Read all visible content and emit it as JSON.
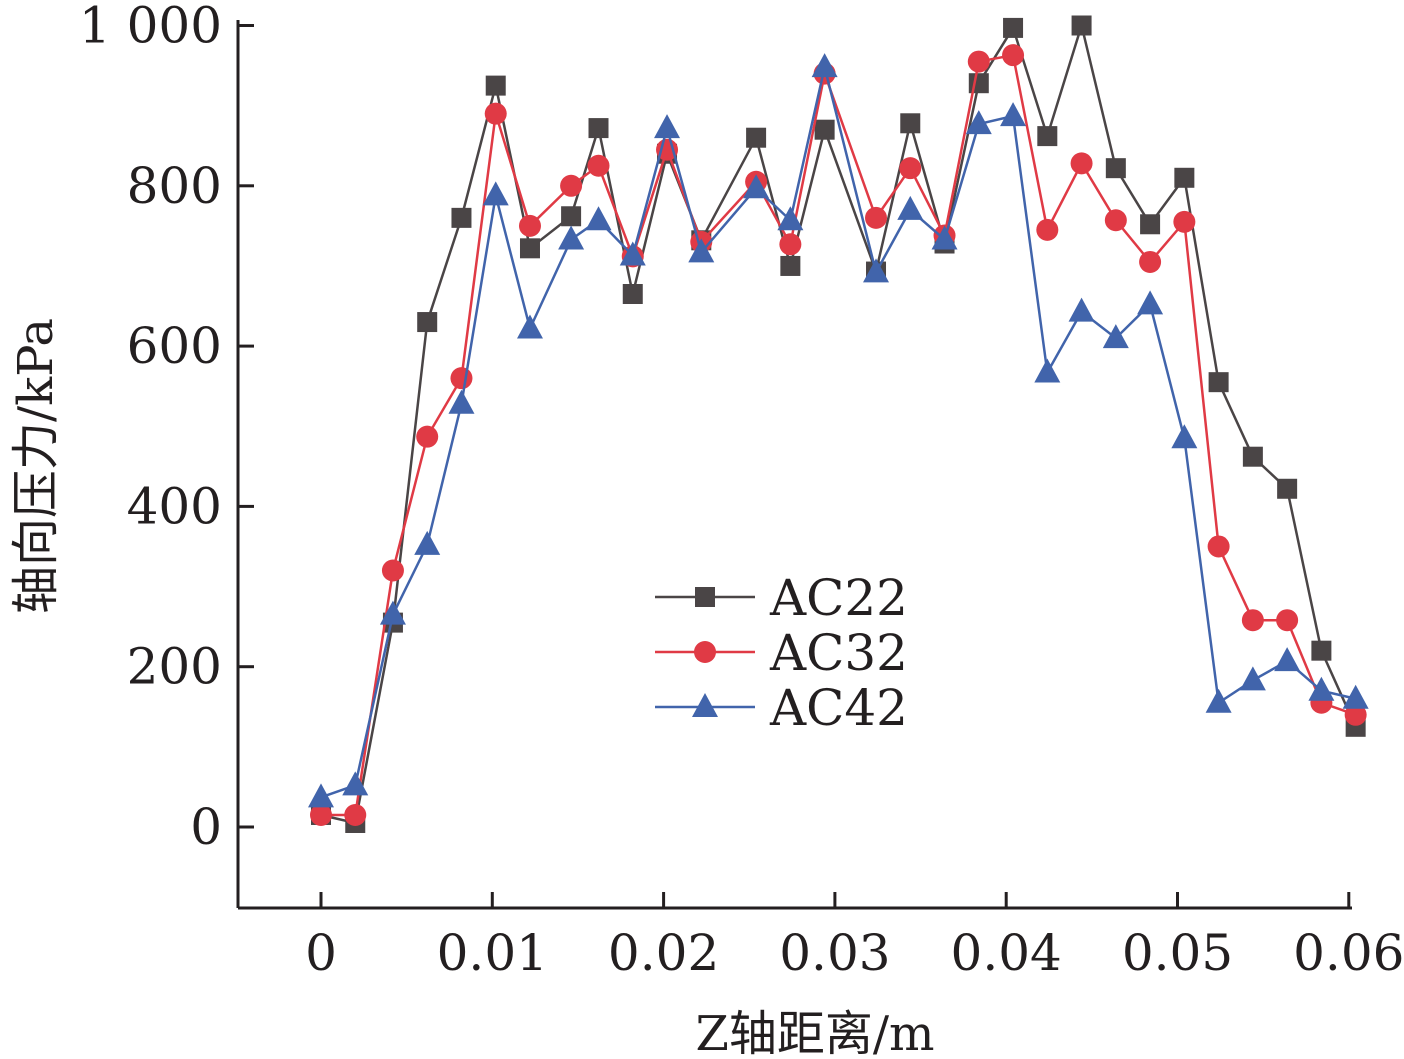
{
  "chart_data": {
    "type": "line",
    "xlabel": "Z轴距离/m",
    "ylabel": "轴向压力/kPa",
    "xlim": [
      -0.005,
      0.06
    ],
    "ylim": [
      -100,
      1000
    ],
    "xticks": [
      0,
      0.01,
      0.02,
      0.03,
      0.04,
      0.05,
      0.06
    ],
    "xtick_labels": [
      "0",
      "0.01",
      "0.02",
      "0.03",
      "0.04",
      "0.05",
      "0.06"
    ],
    "yticks": [
      0,
      200,
      400,
      600,
      800,
      1000
    ],
    "ytick_labels": [
      "0",
      "200",
      "400",
      "600",
      "800",
      "1 000"
    ],
    "legend_position": "center",
    "grid": false,
    "series": [
      {
        "name": "AC22",
        "color": "#4a4546",
        "marker": "square",
        "x": [
          0,
          0.002,
          0.0042,
          0.0062,
          0.0082,
          0.0102,
          0.0122,
          0.0146,
          0.0162,
          0.0182,
          0.0202,
          0.0222,
          0.0254,
          0.0274,
          0.0294,
          0.0324,
          0.0344,
          0.0364,
          0.0384,
          0.0404,
          0.0424,
          0.0444,
          0.0464,
          0.0484,
          0.0504,
          0.0524,
          0.0544,
          0.0564,
          0.0584,
          0.0604
        ],
        "y": [
          15,
          5,
          255,
          630,
          760,
          925,
          722,
          762,
          872,
          665,
          840,
          732,
          860,
          700,
          870,
          693,
          878,
          728,
          928,
          997,
          862,
          1000,
          822,
          752,
          810,
          555,
          462,
          422,
          220,
          125
        ]
      },
      {
        "name": "AC32",
        "color": "#e03a45",
        "marker": "circle",
        "x": [
          0,
          0.002,
          0.0042,
          0.0062,
          0.0082,
          0.0102,
          0.0122,
          0.0146,
          0.0162,
          0.0182,
          0.0202,
          0.0222,
          0.0254,
          0.0274,
          0.0294,
          0.0324,
          0.0344,
          0.0364,
          0.0384,
          0.0404,
          0.0424,
          0.0444,
          0.0464,
          0.0484,
          0.0504,
          0.0524,
          0.0544,
          0.0564,
          0.0584,
          0.0604
        ],
        "y": [
          15,
          15,
          320,
          487,
          560,
          890,
          750,
          800,
          825,
          712,
          845,
          730,
          805,
          727,
          940,
          760,
          822,
          738,
          955,
          963,
          745,
          828,
          757,
          705,
          755,
          350,
          258,
          258,
          155,
          140
        ]
      },
      {
        "name": "AC42",
        "color": "#4164ab",
        "marker": "triangle",
        "x": [
          0,
          0.002,
          0.0042,
          0.0062,
          0.0082,
          0.0102,
          0.0122,
          0.0146,
          0.0162,
          0.0182,
          0.0202,
          0.0222,
          0.0254,
          0.0274,
          0.0294,
          0.0324,
          0.0344,
          0.0364,
          0.0384,
          0.0404,
          0.0424,
          0.0444,
          0.0464,
          0.0484,
          0.0504,
          0.0524,
          0.0544,
          0.0564,
          0.0584,
          0.0604
        ],
        "y": [
          37,
          52,
          265,
          352,
          528,
          788,
          622,
          733,
          757,
          713,
          872,
          717,
          797,
          757,
          948,
          692,
          770,
          733,
          877,
          887,
          567,
          643,
          610,
          652,
          485,
          155,
          183,
          207,
          170,
          160
        ]
      }
    ]
  }
}
